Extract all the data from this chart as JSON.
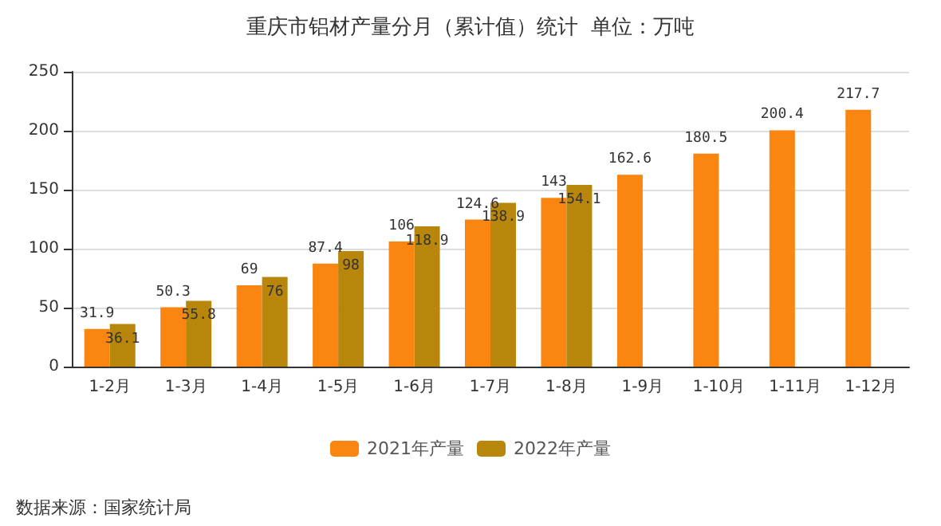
{
  "chart_data": {
    "type": "bar",
    "title": "重庆市铝材产量分月（累计值）统计  单位：万吨",
    "categories": [
      "1-2月",
      "1-3月",
      "1-4月",
      "1-5月",
      "1-6月",
      "1-7月",
      "1-8月",
      "1-9月",
      "1-10月",
      "1-11月",
      "1-12月"
    ],
    "series": [
      {
        "name": "2021年产量",
        "color": "#fa8510",
        "values": [
          31.9,
          50.3,
          69,
          87.4,
          106,
          124.6,
          143,
          162.6,
          180.5,
          200.4,
          217.7
        ]
      },
      {
        "name": "2022年产量",
        "color": "#b8860b",
        "values": [
          36.1,
          55.8,
          76,
          98,
          118.9,
          138.9,
          154.1,
          null,
          null,
          null,
          null
        ]
      }
    ],
    "ylim": [
      0,
      250
    ],
    "yticks": [
      0,
      50,
      100,
      150,
      200,
      250
    ],
    "grid": "y",
    "legend": "bottom",
    "data_labels": true,
    "annotations": [
      "数据来源：国家统计局"
    ]
  }
}
